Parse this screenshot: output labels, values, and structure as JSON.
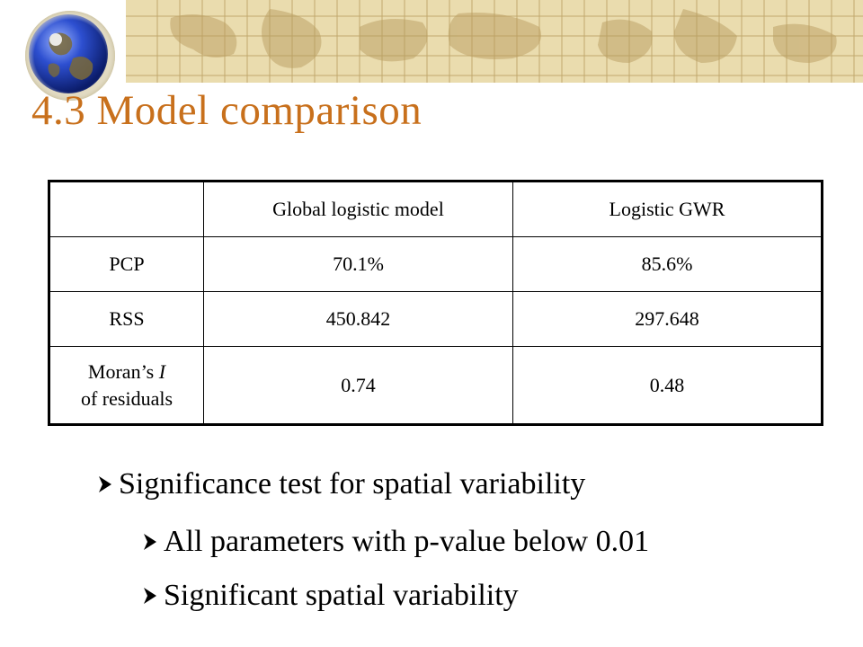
{
  "slide": {
    "title": "4.3 Model comparison",
    "accent_color": "#c8701c",
    "banner_color": "#e8d9a8",
    "icons": [
      "globe-icon",
      "world-map-banner",
      "bullet-arrow-icon"
    ]
  },
  "table": {
    "headers": [
      "",
      "Global logistic model",
      "Logistic GWR"
    ],
    "rows": [
      {
        "label": "PCP",
        "global": "70.1%",
        "gwr": "85.6%"
      },
      {
        "label": "RSS",
        "global": "450.842",
        "gwr": "297.648"
      },
      {
        "label_prefix": "Moran’s ",
        "label_italic": "I",
        "label_line2": "of residuals",
        "global": "0.74",
        "gwr": "0.48"
      }
    ]
  },
  "bullets": {
    "main": "Significance test for spatial variability",
    "sub1": "All parameters with p-value below 0.01",
    "sub2": "Significant spatial variability"
  }
}
